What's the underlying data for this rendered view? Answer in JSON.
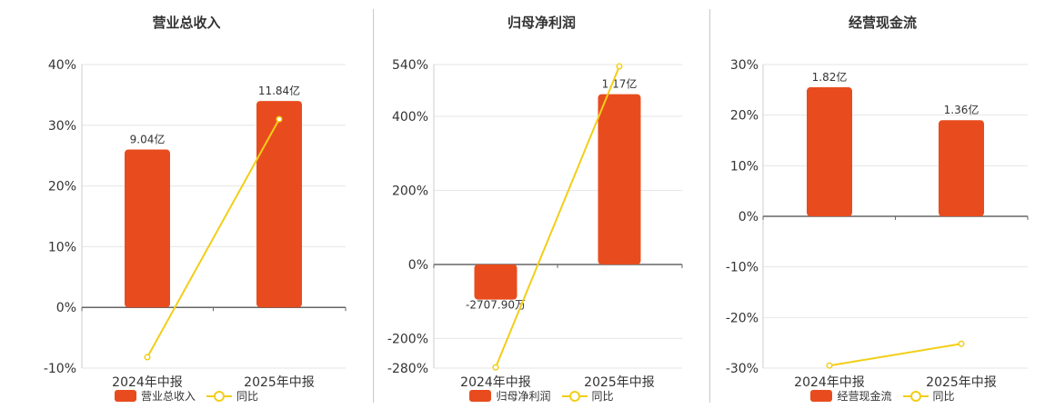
{
  "colors": {
    "bar": "#E84C1E",
    "line": "#F2CE17",
    "grid": "#e6e6e6",
    "axis": "#666666",
    "text": "#333333"
  },
  "chart_data": [
    {
      "type": "bar",
      "title": "营业总收入",
      "categories": [
        "2024年中报",
        "2025年中报"
      ],
      "yticks": [
        "40%",
        "30%",
        "20%",
        "10%",
        "0%",
        "-10%"
      ],
      "ylim": [
        -10,
        40
      ],
      "grid": true,
      "legend_position": "bottom",
      "series": [
        {
          "name": "营业总收入",
          "type": "bar",
          "values": [
            26,
            34
          ],
          "data_labels": [
            "9.04亿",
            "11.84亿"
          ]
        },
        {
          "name": "同比",
          "type": "line",
          "values": [
            -8.2,
            31
          ]
        }
      ]
    },
    {
      "type": "bar",
      "title": "归母净利润",
      "categories": [
        "2024年中报",
        "2025年中报"
      ],
      "yticks": [
        "540%",
        "400%",
        "200%",
        "0%",
        "-200%",
        "-280%"
      ],
      "ylim": [
        -280,
        540
      ],
      "grid": true,
      "legend_position": "bottom",
      "series": [
        {
          "name": "归母净利润",
          "type": "bar",
          "values": [
            -95,
            460
          ],
          "data_labels": [
            "-2707.90万",
            "1.17亿"
          ]
        },
        {
          "name": "同比",
          "type": "line",
          "values": [
            -278,
            535
          ]
        }
      ]
    },
    {
      "type": "bar",
      "title": "经营现金流",
      "categories": [
        "2024年中报",
        "2025年中报"
      ],
      "yticks": [
        "30%",
        "20%",
        "10%",
        "0%",
        "-10%",
        "-20%",
        "-30%"
      ],
      "ylim": [
        -30,
        30
      ],
      "grid": true,
      "legend_position": "bottom",
      "series": [
        {
          "name": "经营现金流",
          "type": "bar",
          "values": [
            25.5,
            19
          ],
          "data_labels": [
            "1.82亿",
            "1.36亿"
          ]
        },
        {
          "name": "同比",
          "type": "line",
          "values": [
            -29.5,
            -25.2
          ]
        }
      ]
    }
  ]
}
